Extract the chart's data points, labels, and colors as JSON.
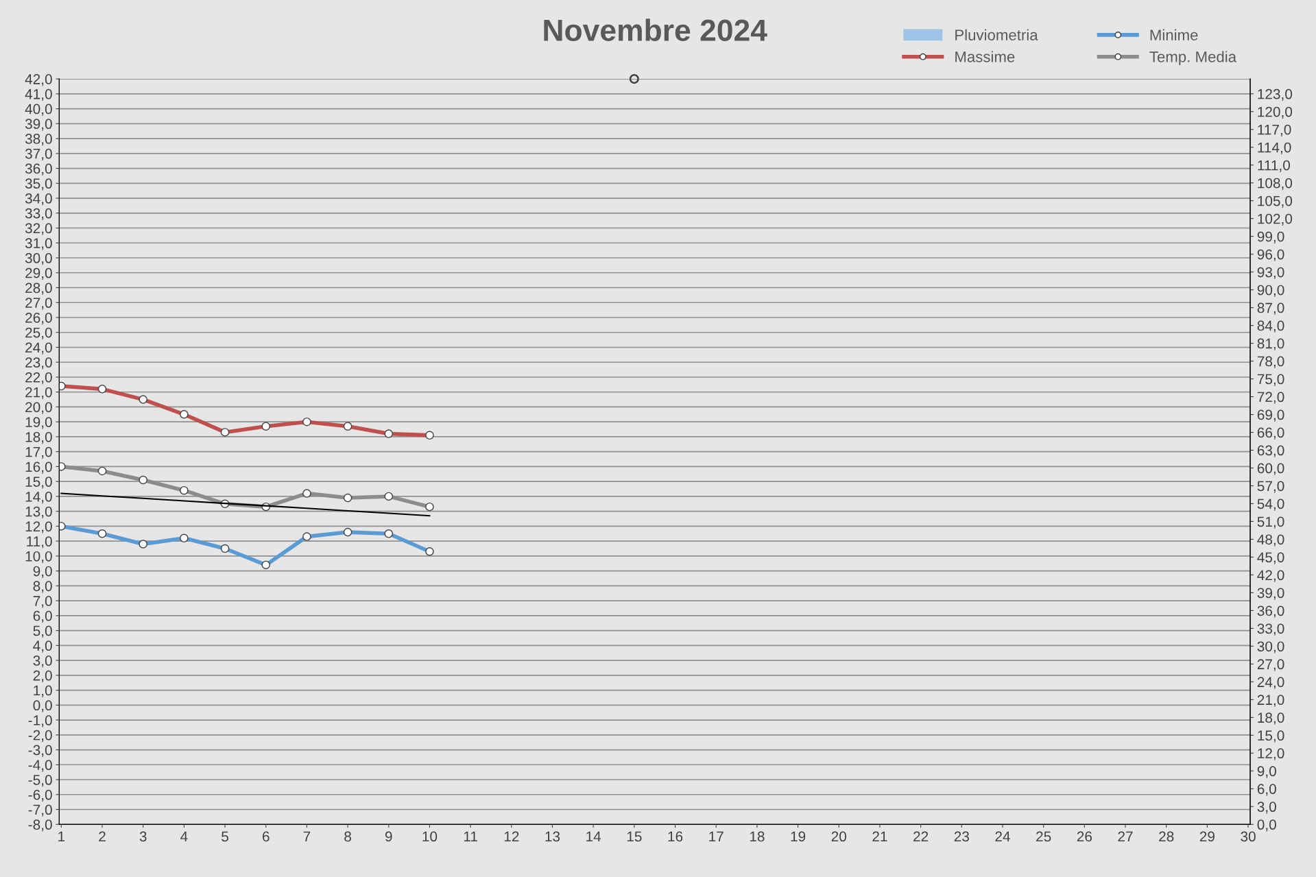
{
  "chart_data": {
    "type": "line",
    "title": "Novembre 2024",
    "categories": [
      "1",
      "2",
      "3",
      "4",
      "5",
      "6",
      "7",
      "8",
      "9",
      "10",
      "11",
      "12",
      "13",
      "14",
      "15",
      "16",
      "17",
      "18",
      "19",
      "20",
      "21",
      "22",
      "23",
      "24",
      "25",
      "26",
      "27",
      "28",
      "29",
      "30"
    ],
    "series": [
      {
        "name": "Pluviometria",
        "type": "bar",
        "color": "#9dc3e6",
        "values": [
          null,
          null,
          null,
          null,
          null,
          null,
          null,
          null,
          null,
          null,
          null,
          null,
          null,
          null,
          null,
          null,
          null,
          null,
          null,
          null,
          null,
          null,
          null,
          null,
          null,
          null,
          null,
          null,
          null,
          null
        ]
      },
      {
        "name": "Massime",
        "color": "#c0504d",
        "marker": "circle",
        "values": [
          21.4,
          21.2,
          20.5,
          19.5,
          18.3,
          18.7,
          19.0,
          18.7,
          18.2,
          18.1,
          null,
          null,
          null,
          null,
          null,
          null,
          null,
          null,
          null,
          null,
          null,
          null,
          null,
          null,
          null,
          null,
          null,
          null,
          null,
          null
        ]
      },
      {
        "name": "Minime",
        "color": "#5b9bd5",
        "marker": "circle",
        "values": [
          12.0,
          11.5,
          10.8,
          11.2,
          10.5,
          9.4,
          11.3,
          11.6,
          11.5,
          10.3,
          null,
          null,
          null,
          null,
          null,
          null,
          null,
          null,
          null,
          null,
          null,
          null,
          null,
          null,
          null,
          null,
          null,
          null,
          null,
          null
        ]
      },
      {
        "name": "Temp. Media",
        "color": "#8c8c8c",
        "marker": "circle",
        "values": [
          16.0,
          15.7,
          15.1,
          14.4,
          13.5,
          13.3,
          14.2,
          13.9,
          14.0,
          13.3,
          null,
          null,
          null,
          null,
          null,
          null,
          null,
          null,
          null,
          null,
          null,
          null,
          null,
          null,
          null,
          null,
          null,
          null,
          null,
          null
        ]
      },
      {
        "type": "scatter",
        "color": "#404040",
        "marker": "circle",
        "values": [
          null,
          null,
          null,
          null,
          null,
          null,
          null,
          null,
          null,
          null,
          null,
          null,
          null,
          null,
          42.0,
          null,
          null,
          null,
          null,
          null,
          null,
          null,
          null,
          null,
          null,
          null,
          null,
          null,
          null,
          null
        ]
      },
      {
        "type": "line",
        "color": "#000000",
        "marker": "none",
        "values": [
          14.2,
          14.03,
          13.87,
          13.7,
          13.53,
          13.37,
          13.2,
          13.03,
          12.87,
          12.7,
          null,
          null,
          null,
          null,
          null,
          null,
          null,
          null,
          null,
          null,
          null,
          null,
          null,
          null,
          null,
          null,
          null,
          null,
          null,
          null
        ]
      }
    ],
    "ylim": [
      -8,
      42
    ],
    "yticks": [
      {
        "value": 42,
        "label": "42,0"
      },
      {
        "value": 41,
        "label": "41,0"
      },
      {
        "value": 40,
        "label": "40,0"
      },
      {
        "value": 39,
        "label": "39,0"
      },
      {
        "value": 38,
        "label": "38,0"
      },
      {
        "value": 37,
        "label": "37,0"
      },
      {
        "value": 36,
        "label": "36,0"
      },
      {
        "value": 35,
        "label": "35,0"
      },
      {
        "value": 34,
        "label": "34,0"
      },
      {
        "value": 33,
        "label": "33,0"
      },
      {
        "value": 32,
        "label": "32,0"
      },
      {
        "value": 31,
        "label": "31,0"
      },
      {
        "value": 30,
        "label": "30,0"
      },
      {
        "value": 29,
        "label": "29,0"
      },
      {
        "value": 28,
        "label": "28,0"
      },
      {
        "value": 27,
        "label": "27,0"
      },
      {
        "value": 26,
        "label": "26,0"
      },
      {
        "value": 25,
        "label": "25,0"
      },
      {
        "value": 24,
        "label": "24,0"
      },
      {
        "value": 23,
        "label": "23,0"
      },
      {
        "value": 22,
        "label": "22,0"
      },
      {
        "value": 21,
        "label": "21,0"
      },
      {
        "value": 20,
        "label": "20,0"
      },
      {
        "value": 19,
        "label": "19,0"
      },
      {
        "value": 18,
        "label": "18,0"
      },
      {
        "value": 17,
        "label": "17,0"
      },
      {
        "value": 16,
        "label": "16,0"
      },
      {
        "value": 15,
        "label": "15,0"
      },
      {
        "value": 14,
        "label": "14,0"
      },
      {
        "value": 13,
        "label": "13,0"
      },
      {
        "value": 12,
        "label": "12,0"
      },
      {
        "value": 11,
        "label": "11,0"
      },
      {
        "value": 10,
        "label": "10,0"
      },
      {
        "value": 9,
        "label": "9,0"
      },
      {
        "value": 8,
        "label": "8,0"
      },
      {
        "value": 7,
        "label": "7,0"
      },
      {
        "value": 6,
        "label": "6,0"
      },
      {
        "value": 5,
        "label": "5,0"
      },
      {
        "value": 4,
        "label": "4,0"
      },
      {
        "value": 3,
        "label": "3,0"
      },
      {
        "value": 2,
        "label": "2,0"
      },
      {
        "value": 1,
        "label": "1,0"
      },
      {
        "value": 0,
        "label": "0,0"
      },
      {
        "value": -1,
        "label": "-1,0"
      },
      {
        "value": -2,
        "label": "-2,0"
      },
      {
        "value": -3,
        "label": "-3,0"
      },
      {
        "value": -4,
        "label": "-4,0"
      },
      {
        "value": -5,
        "label": "-5,0"
      },
      {
        "value": -6,
        "label": "-6,0"
      },
      {
        "value": -7,
        "label": "-7,0"
      },
      {
        "value": -8,
        "label": "-8,0"
      }
    ],
    "y2lim": [
      0,
      125.5
    ],
    "y2ticks": [
      {
        "value": 0,
        "label": "0,0"
      },
      {
        "value": 3,
        "label": "3,0"
      },
      {
        "value": 6,
        "label": "6,0"
      },
      {
        "value": 9,
        "label": "9,0"
      },
      {
        "value": 12,
        "label": "12,0"
      },
      {
        "value": 15,
        "label": "15,0"
      },
      {
        "value": 18,
        "label": "18,0"
      },
      {
        "value": 21,
        "label": "21,0"
      },
      {
        "value": 24,
        "label": "24,0"
      },
      {
        "value": 27,
        "label": "27,0"
      },
      {
        "value": 30,
        "label": "30,0"
      },
      {
        "value": 33,
        "label": "33,0"
      },
      {
        "value": 36,
        "label": "36,0"
      },
      {
        "value": 39,
        "label": "39,0"
      },
      {
        "value": 42,
        "label": "42,0"
      },
      {
        "value": 45,
        "label": "45,0"
      },
      {
        "value": 48,
        "label": "48,0"
      },
      {
        "value": 51,
        "label": "51,0"
      },
      {
        "value": 54,
        "label": "54,0"
      },
      {
        "value": 57,
        "label": "57,0"
      },
      {
        "value": 60,
        "label": "60,0"
      },
      {
        "value": 63,
        "label": "63,0"
      },
      {
        "value": 66,
        "label": "66,0"
      },
      {
        "value": 69,
        "label": "69,0"
      },
      {
        "value": 72,
        "label": "72,0"
      },
      {
        "value": 75,
        "label": "75,0"
      },
      {
        "value": 78,
        "label": "78,0"
      },
      {
        "value": 81,
        "label": "81,0"
      },
      {
        "value": 84,
        "label": "84,0"
      },
      {
        "value": 87,
        "label": "87,0"
      },
      {
        "value": 90,
        "label": "90,0"
      },
      {
        "value": 93,
        "label": "93,0"
      },
      {
        "value": 96,
        "label": "96,0"
      },
      {
        "value": 99,
        "label": "99,0"
      },
      {
        "value": 102,
        "label": "102,0"
      },
      {
        "value": 105,
        "label": "105,0"
      },
      {
        "value": 108,
        "label": "108,0"
      },
      {
        "value": 111,
        "label": "111,0"
      },
      {
        "value": 114,
        "label": "114,0"
      },
      {
        "value": 117,
        "label": "117,0"
      },
      {
        "value": 120,
        "label": "120,0"
      },
      {
        "value": 123,
        "label": "123,0"
      }
    ],
    "grid": "y",
    "legend": "top right"
  }
}
